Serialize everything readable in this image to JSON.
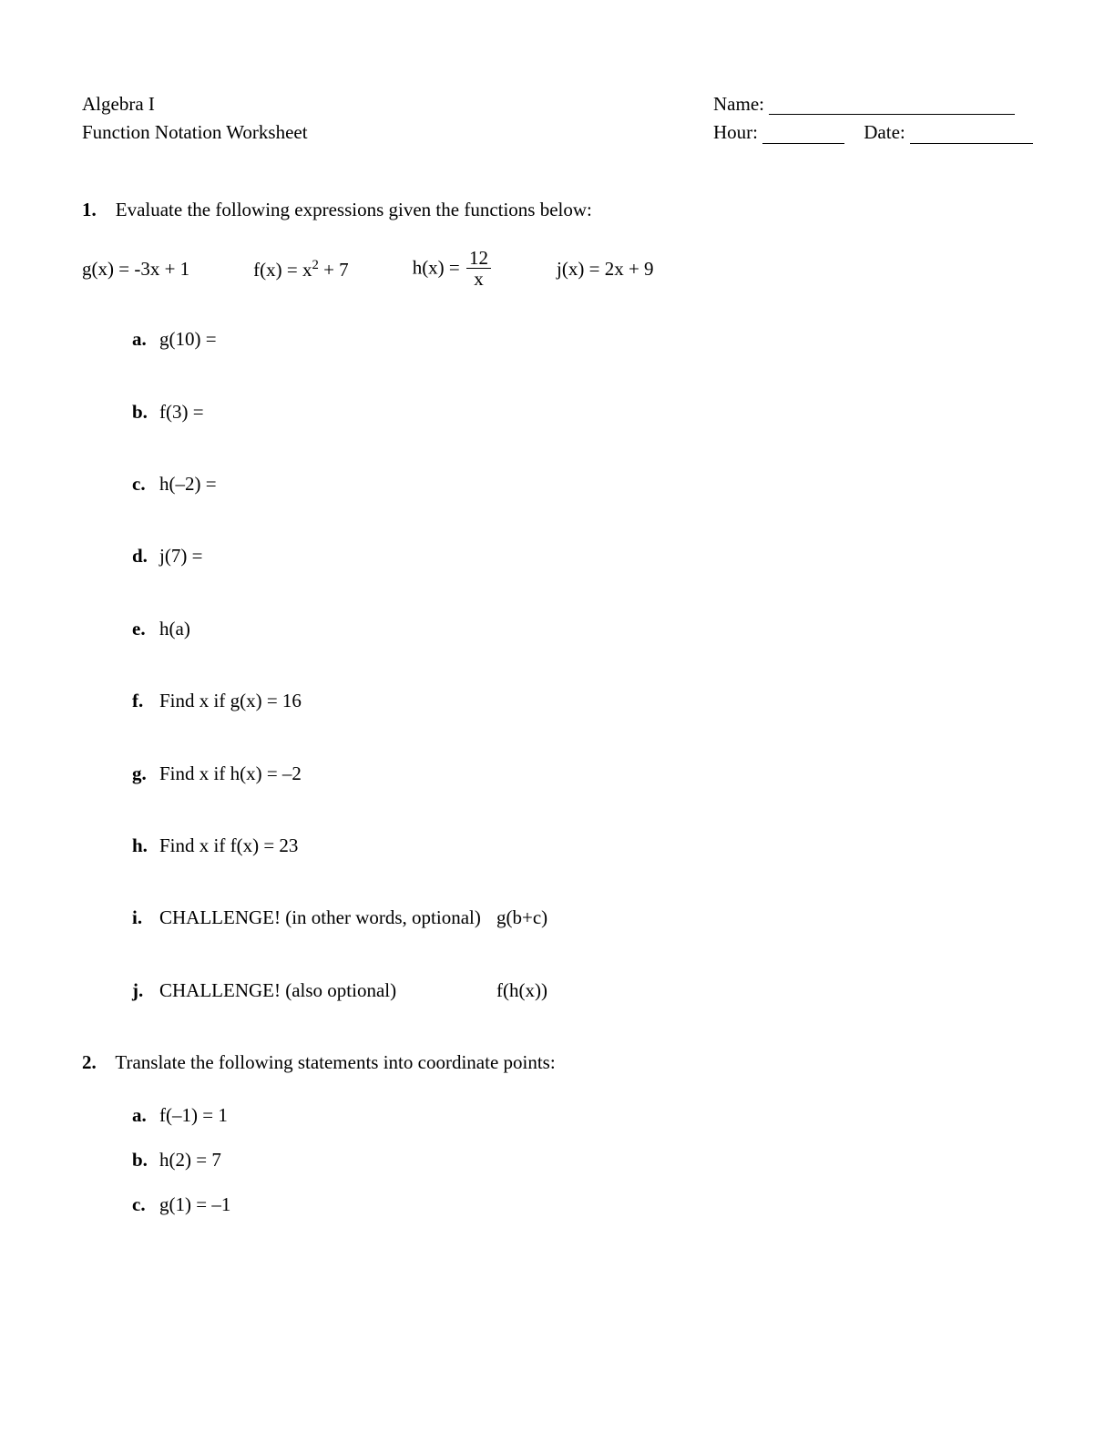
{
  "header": {
    "course": "Algebra I",
    "worksheet_title": "Function Notation Worksheet",
    "name_label": "Name:",
    "hour_label": "Hour:",
    "date_label": "Date:"
  },
  "q1": {
    "number": "1.",
    "prompt": "Evaluate the following expressions given the functions below:",
    "functions": {
      "g": "g(x) = -3x + 1",
      "f_prefix": "f(x) = x",
      "f_exp": "2",
      "f_suffix": " + 7",
      "h_prefix": "h(x) = ",
      "h_num": "12",
      "h_den": "x",
      "j": "j(x) = 2x + 9"
    },
    "items": [
      {
        "letter": "a.",
        "text": "g(10) ="
      },
      {
        "letter": "b.",
        "text": "f(3) ="
      },
      {
        "letter": "c.",
        "text": "h(–2) ="
      },
      {
        "letter": "d.",
        "text": "j(7) ="
      },
      {
        "letter": "e.",
        "text": "h(a)"
      },
      {
        "letter": "f.",
        "text": "Find x if g(x) = 16"
      },
      {
        "letter": "g.",
        "text": "Find x if h(x) = –2"
      },
      {
        "letter": "h.",
        "text": "Find x if f(x) = 23"
      },
      {
        "letter": "i.",
        "text": "CHALLENGE! (in other words, optional)",
        "extra": "g(b+c)"
      },
      {
        "letter": "j.",
        "text": "CHALLENGE! (also optional)",
        "extra": "f(h(x))"
      }
    ]
  },
  "q2": {
    "number": "2.",
    "prompt": "Translate the following statements into coordinate points:",
    "items": [
      {
        "letter": "a.",
        "text": "f(–1) = 1"
      },
      {
        "letter": "b.",
        "text": "h(2) = 7"
      },
      {
        "letter": "c.",
        "text": "g(1) = –1"
      }
    ]
  },
  "style": {
    "font_family": "Times New Roman",
    "font_size_pt": 16,
    "text_color": "#000000",
    "background_color": "#ffffff"
  }
}
